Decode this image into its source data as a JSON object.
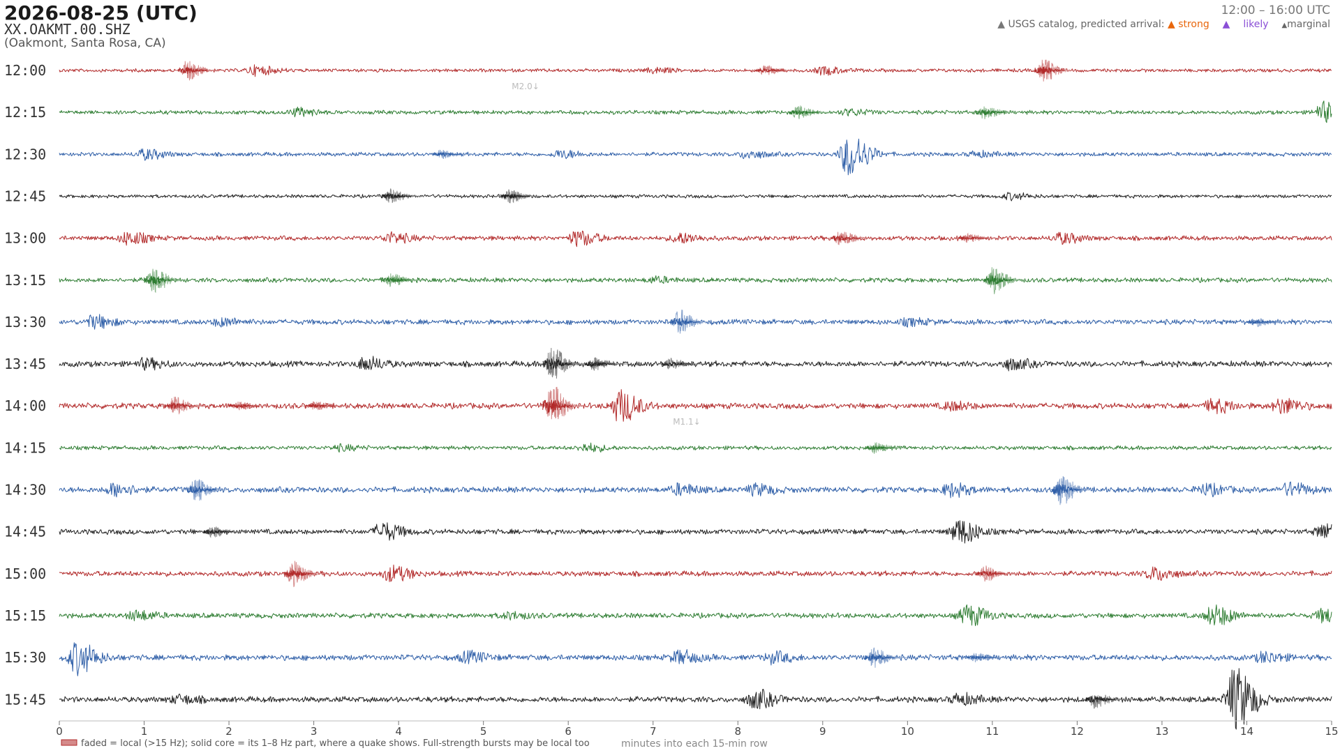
{
  "header": {
    "date": "2026-08-25  (UTC)",
    "station": "XX.OAKMT.00.SHZ",
    "location": "(Oakmont, Santa Rosa, CA)",
    "time_range": "12:00 – 16:00 UTC"
  },
  "legend": {
    "catalog_label": "USGS catalog, predicted arrival:",
    "strong": "strong",
    "likely": "likely",
    "marginal": "marginal",
    "colors": {
      "strong": "#e8660c",
      "likely": "#8a4fd6",
      "marginal": "#666666"
    }
  },
  "chart_data": {
    "type": "line",
    "title": "",
    "xlabel": "minutes into each 15-min row",
    "xlim": [
      0,
      15
    ],
    "x_ticks": [
      "0",
      "1",
      "2",
      "3",
      "4",
      "5",
      "6",
      "7",
      "8",
      "9",
      "10",
      "11",
      "12",
      "13",
      "14",
      "15"
    ],
    "series_colors": [
      "#b22a2a",
      "#2e7d32",
      "#2f5fa8",
      "#222222"
    ],
    "rows": [
      {
        "label": "12:00",
        "color": "#b22a2a",
        "noise": 0.06,
        "bursts": [
          {
            "t": 1.5,
            "amp": 0.45,
            "faded": true
          },
          {
            "t": 2.3,
            "amp": 0.18,
            "faded": false
          },
          {
            "t": 8.3,
            "amp": 0.22,
            "faded": true
          },
          {
            "t": 9.0,
            "amp": 0.15,
            "faded": false
          },
          {
            "t": 11.6,
            "amp": 0.5,
            "faded": true
          },
          {
            "t": 7.0,
            "amp": 0.1,
            "faded": false
          }
        ]
      },
      {
        "label": "12:15",
        "color": "#2e7d32",
        "noise": 0.07,
        "bursts": [
          {
            "t": 2.8,
            "amp": 0.15,
            "faded": false
          },
          {
            "t": 8.7,
            "amp": 0.3,
            "faded": true
          },
          {
            "t": 9.3,
            "amp": 0.12,
            "faded": false
          },
          {
            "t": 10.9,
            "amp": 0.3,
            "faded": true
          },
          {
            "t": 14.9,
            "amp": 0.4,
            "faded": false
          }
        ]
      },
      {
        "label": "12:30",
        "color": "#2f5fa8",
        "noise": 0.07,
        "bursts": [
          {
            "t": 1.0,
            "amp": 0.2,
            "faded": false
          },
          {
            "t": 4.5,
            "amp": 0.2,
            "faded": true
          },
          {
            "t": 5.9,
            "amp": 0.15,
            "faded": false
          },
          {
            "t": 8.1,
            "amp": 0.15,
            "faded": false
          },
          {
            "t": 9.3,
            "amp": 0.9,
            "faded": false
          },
          {
            "t": 10.8,
            "amp": 0.1,
            "faded": false
          }
        ]
      },
      {
        "label": "12:45",
        "color": "#222222",
        "noise": 0.06,
        "bursts": [
          {
            "t": 3.9,
            "amp": 0.32,
            "faded": true
          },
          {
            "t": 5.3,
            "amp": 0.3,
            "faded": true
          },
          {
            "t": 11.2,
            "amp": 0.12,
            "faded": false
          }
        ]
      },
      {
        "label": "13:00",
        "color": "#b22a2a",
        "noise": 0.08,
        "bursts": [
          {
            "t": 0.8,
            "amp": 0.25,
            "faded": false
          },
          {
            "t": 3.9,
            "amp": 0.2,
            "faded": false
          },
          {
            "t": 6.1,
            "amp": 0.3,
            "faded": false
          },
          {
            "t": 7.3,
            "amp": 0.2,
            "faded": false
          },
          {
            "t": 9.2,
            "amp": 0.35,
            "faded": true
          },
          {
            "t": 10.7,
            "amp": 0.2,
            "faded": true
          },
          {
            "t": 11.8,
            "amp": 0.2,
            "faded": false
          }
        ]
      },
      {
        "label": "13:15",
        "color": "#2e7d32",
        "noise": 0.08,
        "bursts": [
          {
            "t": 1.1,
            "amp": 0.6,
            "faded": true
          },
          {
            "t": 3.9,
            "amp": 0.3,
            "faded": true
          },
          {
            "t": 11.0,
            "amp": 0.6,
            "faded": true
          },
          {
            "t": 7.0,
            "amp": 0.1,
            "faded": false
          }
        ]
      },
      {
        "label": "13:30",
        "color": "#2f5fa8",
        "noise": 0.09,
        "bursts": [
          {
            "t": 0.4,
            "amp": 0.25,
            "faded": false
          },
          {
            "t": 1.9,
            "amp": 0.15,
            "faded": false
          },
          {
            "t": 7.3,
            "amp": 0.55,
            "faded": true
          },
          {
            "t": 10.0,
            "amp": 0.12,
            "faded": false
          },
          {
            "t": 14.1,
            "amp": 0.2,
            "faded": true
          }
        ]
      },
      {
        "label": "13:45",
        "color": "#222222",
        "noise": 0.1,
        "bursts": [
          {
            "t": 1.0,
            "amp": 0.18,
            "faded": false
          },
          {
            "t": 3.6,
            "amp": 0.25,
            "faded": false
          },
          {
            "t": 5.8,
            "amp": 0.75,
            "faded": true
          },
          {
            "t": 6.3,
            "amp": 0.3,
            "faded": true
          },
          {
            "t": 7.2,
            "amp": 0.25,
            "faded": true
          },
          {
            "t": 11.2,
            "amp": 0.2,
            "faded": false
          }
        ]
      },
      {
        "label": "14:00",
        "color": "#b22a2a",
        "noise": 0.1,
        "bursts": [
          {
            "t": 1.35,
            "amp": 0.4,
            "faded": true
          },
          {
            "t": 2.1,
            "amp": 0.2,
            "faded": true
          },
          {
            "t": 3.0,
            "amp": 0.2,
            "faded": true
          },
          {
            "t": 5.8,
            "amp": 0.95,
            "faded": true
          },
          {
            "t": 6.6,
            "amp": 0.65,
            "faded": false
          },
          {
            "t": 13.6,
            "amp": 0.25,
            "faded": false
          },
          {
            "t": 14.4,
            "amp": 0.3,
            "faded": false
          },
          {
            "t": 10.5,
            "amp": 0.15,
            "faded": false
          }
        ]
      },
      {
        "label": "14:15",
        "color": "#2e7d32",
        "noise": 0.07,
        "bursts": [
          {
            "t": 6.2,
            "amp": 0.15,
            "faded": false
          },
          {
            "t": 9.6,
            "amp": 0.25,
            "faded": true
          },
          {
            "t": 3.3,
            "amp": 0.1,
            "faded": false
          }
        ]
      },
      {
        "label": "14:30",
        "color": "#2f5fa8",
        "noise": 0.1,
        "bursts": [
          {
            "t": 0.65,
            "amp": 0.25,
            "faded": false
          },
          {
            "t": 1.6,
            "amp": 0.5,
            "faded": true
          },
          {
            "t": 7.3,
            "amp": 0.2,
            "faded": false
          },
          {
            "t": 8.2,
            "amp": 0.2,
            "faded": false
          },
          {
            "t": 10.5,
            "amp": 0.25,
            "faded": false
          },
          {
            "t": 11.8,
            "amp": 0.7,
            "faded": true
          },
          {
            "t": 14.5,
            "amp": 0.25,
            "faded": false
          },
          {
            "t": 13.5,
            "amp": 0.2,
            "faded": false
          }
        ]
      },
      {
        "label": "14:45",
        "color": "#222222",
        "noise": 0.09,
        "bursts": [
          {
            "t": 1.8,
            "amp": 0.25,
            "faded": true
          },
          {
            "t": 3.8,
            "amp": 0.35,
            "faded": false
          },
          {
            "t": 10.6,
            "amp": 0.5,
            "faded": false
          },
          {
            "t": 14.9,
            "amp": 0.3,
            "faded": false
          }
        ]
      },
      {
        "label": "15:00",
        "color": "#b22a2a",
        "noise": 0.09,
        "bursts": [
          {
            "t": 2.75,
            "amp": 0.55,
            "faded": true
          },
          {
            "t": 3.9,
            "amp": 0.3,
            "faded": false
          },
          {
            "t": 10.9,
            "amp": 0.35,
            "faded": true
          },
          {
            "t": 12.9,
            "amp": 0.25,
            "faded": false
          }
        ]
      },
      {
        "label": "15:15",
        "color": "#2e7d32",
        "noise": 0.09,
        "bursts": [
          {
            "t": 0.9,
            "amp": 0.18,
            "faded": false
          },
          {
            "t": 10.7,
            "amp": 0.4,
            "faded": false
          },
          {
            "t": 13.6,
            "amp": 0.4,
            "faded": false
          },
          {
            "t": 14.9,
            "amp": 0.25,
            "faded": false
          },
          {
            "t": 5.3,
            "amp": 0.12,
            "faded": false
          }
        ]
      },
      {
        "label": "15:30",
        "color": "#2f5fa8",
        "noise": 0.1,
        "bursts": [
          {
            "t": 0.2,
            "amp": 0.65,
            "faded": false
          },
          {
            "t": 4.8,
            "amp": 0.2,
            "faded": false
          },
          {
            "t": 7.3,
            "amp": 0.25,
            "faded": false
          },
          {
            "t": 8.4,
            "amp": 0.2,
            "faded": false
          },
          {
            "t": 9.6,
            "amp": 0.45,
            "faded": true
          },
          {
            "t": 10.8,
            "amp": 0.2,
            "faded": true
          },
          {
            "t": 14.2,
            "amp": 0.2,
            "faded": false
          }
        ]
      },
      {
        "label": "15:45",
        "color": "#222222",
        "noise": 0.1,
        "bursts": [
          {
            "t": 1.4,
            "amp": 0.15,
            "faded": false
          },
          {
            "t": 8.2,
            "amp": 0.35,
            "faded": false
          },
          {
            "t": 10.6,
            "amp": 0.2,
            "faded": false
          },
          {
            "t": 12.2,
            "amp": 0.4,
            "faded": true
          },
          {
            "t": 13.85,
            "amp": 1.3,
            "faded": false
          }
        ]
      }
    ],
    "annotations": [
      {
        "row": 0,
        "t": 5.4,
        "text": "M2.0"
      },
      {
        "row": 8,
        "t": 7.3,
        "text": "M1.1"
      }
    ],
    "footnote": "faded = local (>15 Hz); solid core = its 1–8 Hz part, where a quake shows. Full-strength bursts may be local too"
  }
}
